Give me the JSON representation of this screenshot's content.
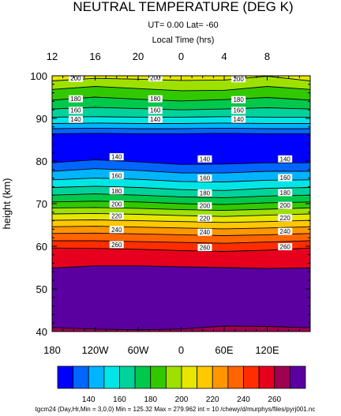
{
  "chart_data": {
    "type": "contour",
    "title": "NEUTRAL TEMPERATURE (DEG K)",
    "subtitle": "UT=  0.00 Lat= -60",
    "top_axis_label": "Local Time (hrs)",
    "ylabel": "height (km)",
    "xlim": [
      -180,
      180
    ],
    "ylim": [
      40,
      100
    ],
    "x_ticks": [
      "180",
      "120W",
      "60W",
      "0",
      "60E",
      "120E"
    ],
    "x_tick_values": [
      -180,
      -120,
      -60,
      0,
      60,
      120
    ],
    "top_ticks": [
      "12",
      "16",
      "20",
      "0",
      "4",
      "8"
    ],
    "top_tick_values": [
      -180,
      -120,
      -60,
      0,
      60,
      120
    ],
    "y_ticks": [
      "40",
      "50",
      "60",
      "70",
      "80",
      "90",
      "100"
    ],
    "y_tick_values": [
      40,
      50,
      60,
      70,
      80,
      90,
      100
    ],
    "levels": [
      130,
      140,
      150,
      160,
      170,
      180,
      190,
      200,
      210,
      220,
      230,
      240,
      250,
      260,
      270
    ],
    "fill_colors": [
      "#0000ff",
      "#0066ff",
      "#00b4ff",
      "#00e6e6",
      "#00d29b",
      "#00c84b",
      "#32c800",
      "#9ee100",
      "#e6e600",
      "#ffc800",
      "#ff9600",
      "#ff6400",
      "#ff2d00",
      "#e6001e",
      "#a00050",
      "#5a00a0"
    ],
    "contours": [
      {
        "level": 130,
        "x": [
          -180,
          -120,
          -60,
          0,
          60,
          120,
          180
        ],
        "y": [
          86.4,
          86.5,
          86.4,
          86.4,
          86.5,
          86.4,
          86.4
        ]
      },
      {
        "level": 140,
        "x": [
          -180,
          -120,
          -60,
          0,
          60,
          120,
          180
        ],
        "y": [
          87.6,
          87.7,
          87.6,
          87.6,
          87.7,
          87.6,
          87.6
        ]
      },
      {
        "level": 150,
        "x": [
          -180,
          -120,
          -60,
          0,
          60,
          120,
          180
        ],
        "y": [
          88.8,
          88.9,
          88.8,
          88.8,
          88.9,
          88.8,
          88.8
        ]
      },
      {
        "level": 160,
        "x": [
          -180,
          -120,
          -60,
          0,
          60,
          120,
          180
        ],
        "y": [
          90.3,
          90.4,
          90.3,
          90.3,
          90.4,
          90.3,
          90.3
        ]
      },
      {
        "level": 170,
        "x": [
          -180,
          -120,
          -60,
          0,
          60,
          120,
          180
        ],
        "y": [
          92.2,
          92.6,
          92.3,
          92.0,
          92.2,
          92.5,
          92.2
        ]
      },
      {
        "level": 180,
        "x": [
          -180,
          -120,
          -60,
          0,
          60,
          120,
          180
        ],
        "y": [
          94.3,
          95.0,
          94.5,
          94.1,
          94.4,
          94.9,
          94.3
        ]
      },
      {
        "level": 190,
        "x": [
          -180,
          -120,
          -60,
          0,
          60,
          120,
          180
        ],
        "y": [
          96.8,
          97.5,
          97.0,
          96.5,
          96.6,
          97.5,
          96.8
        ]
      },
      {
        "level": 200,
        "x": [
          -180,
          -120,
          -60,
          0,
          60,
          120,
          180
        ],
        "y": [
          98.8,
          99.4,
          99.2,
          98.9,
          99.0,
          99.9,
          98.8
        ]
      },
      {
        "level": 140,
        "x": [
          -180,
          -120,
          -60,
          0,
          60,
          120,
          180
        ],
        "y": [
          79.6,
          80.3,
          79.8,
          79.2,
          79.3,
          79.6,
          79.6
        ]
      },
      {
        "level": 150,
        "x": [
          -180,
          -120,
          -60,
          0,
          60,
          120,
          180
        ],
        "y": [
          77.6,
          78.2,
          77.8,
          77.2,
          77.2,
          77.6,
          77.6
        ]
      },
      {
        "level": 160,
        "x": [
          -180,
          -120,
          -60,
          0,
          60,
          120,
          180
        ],
        "y": [
          75.6,
          76.0,
          75.7,
          75.2,
          75.1,
          75.5,
          75.6
        ]
      },
      {
        "level": 170,
        "x": [
          -180,
          -120,
          -60,
          0,
          60,
          120,
          180
        ],
        "y": [
          73.8,
          74.1,
          73.8,
          73.3,
          73.1,
          73.6,
          73.8
        ]
      },
      {
        "level": 180,
        "x": [
          -180,
          -120,
          -60,
          0,
          60,
          120,
          180
        ],
        "y": [
          72.0,
          72.3,
          72.0,
          71.6,
          71.4,
          71.8,
          72.0
        ]
      },
      {
        "level": 190,
        "x": [
          -180,
          -120,
          -60,
          0,
          60,
          120,
          180
        ],
        "y": [
          70.4,
          70.6,
          70.4,
          70.0,
          69.8,
          70.2,
          70.4
        ]
      },
      {
        "level": 200,
        "x": [
          -180,
          -120,
          -60,
          0,
          60,
          120,
          180
        ],
        "y": [
          69.0,
          69.1,
          68.9,
          68.6,
          68.4,
          68.7,
          69.0
        ]
      },
      {
        "level": 210,
        "x": [
          -180,
          -120,
          -60,
          0,
          60,
          120,
          180
        ],
        "y": [
          67.6,
          67.7,
          67.5,
          67.2,
          67.0,
          67.3,
          67.6
        ]
      },
      {
        "level": 220,
        "x": [
          -180,
          -120,
          -60,
          0,
          60,
          120,
          180
        ],
        "y": [
          66.1,
          66.2,
          66.0,
          65.8,
          65.6,
          65.8,
          66.1
        ]
      },
      {
        "level": 230,
        "x": [
          -180,
          -120,
          -60,
          0,
          60,
          120,
          180
        ],
        "y": [
          64.6,
          64.7,
          64.5,
          64.3,
          64.1,
          64.3,
          64.6
        ]
      },
      {
        "level": 240,
        "x": [
          -180,
          -120,
          -60,
          0,
          60,
          120,
          180
        ],
        "y": [
          63.0,
          63.1,
          62.9,
          62.7,
          62.5,
          62.7,
          63.0
        ]
      },
      {
        "level": 250,
        "x": [
          -180,
          -120,
          -60,
          0,
          60,
          120,
          180
        ],
        "y": [
          61.3,
          61.3,
          61.1,
          60.9,
          60.7,
          61.0,
          61.3
        ]
      },
      {
        "level": 260,
        "x": [
          -180,
          -120,
          -60,
          0,
          60,
          120,
          180
        ],
        "y": [
          59.6,
          59.5,
          59.3,
          59.0,
          58.8,
          59.1,
          59.6
        ]
      },
      {
        "level": 270,
        "x": [
          -180,
          -120,
          -60,
          0,
          60,
          120,
          180
        ],
        "y": [
          54.9,
          55.4,
          55.4,
          55.2,
          55.0,
          54.8,
          54.9
        ]
      },
      {
        "level": 270,
        "x": [
          -180,
          -120,
          -60,
          0,
          60,
          120,
          180
        ],
        "y": [
          40.9,
          40.6,
          40.4,
          40.6,
          41.3,
          41.2,
          40.9
        ]
      }
    ],
    "contour_labels": [
      {
        "text": "200",
        "x": -147,
        "y": 99.4
      },
      {
        "text": "200",
        "x": -36,
        "y": 99.5
      },
      {
        "text": "200",
        "x": 80,
        "y": 99.3
      },
      {
        "text": "180",
        "x": -147,
        "y": 94.6
      },
      {
        "text": "180",
        "x": -36,
        "y": 94.6
      },
      {
        "text": "180",
        "x": 80,
        "y": 94.4
      },
      {
        "text": "160",
        "x": -147,
        "y": 91.9
      },
      {
        "text": "160",
        "x": -36,
        "y": 91.9
      },
      {
        "text": "160",
        "x": 80,
        "y": 91.9
      },
      {
        "text": "140",
        "x": -147,
        "y": 89.8
      },
      {
        "text": "140",
        "x": -36,
        "y": 89.8
      },
      {
        "text": "140",
        "x": 80,
        "y": 89.8
      },
      {
        "text": "140",
        "x": -90,
        "y": 81.0
      },
      {
        "text": "140",
        "x": 33,
        "y": 80.5
      },
      {
        "text": "140",
        "x": 145,
        "y": 80.5
      },
      {
        "text": "160",
        "x": -90,
        "y": 76.6
      },
      {
        "text": "160",
        "x": 33,
        "y": 76.0
      },
      {
        "text": "160",
        "x": 145,
        "y": 76.1
      },
      {
        "text": "180",
        "x": -90,
        "y": 73.0
      },
      {
        "text": "180",
        "x": 33,
        "y": 72.5
      },
      {
        "text": "180",
        "x": 145,
        "y": 72.6
      },
      {
        "text": "200",
        "x": -90,
        "y": 69.9
      },
      {
        "text": "200",
        "x": 33,
        "y": 69.5
      },
      {
        "text": "200",
        "x": 145,
        "y": 69.6
      },
      {
        "text": "220",
        "x": -90,
        "y": 67.1
      },
      {
        "text": "220",
        "x": 33,
        "y": 66.6
      },
      {
        "text": "220",
        "x": 145,
        "y": 66.7
      },
      {
        "text": "240",
        "x": -90,
        "y": 63.9
      },
      {
        "text": "240",
        "x": 33,
        "y": 63.3
      },
      {
        "text": "240",
        "x": 145,
        "y": 63.5
      },
      {
        "text": "260",
        "x": -90,
        "y": 60.4
      },
      {
        "text": "260",
        "x": 33,
        "y": 59.7
      },
      {
        "text": "260",
        "x": 145,
        "y": 59.9
      }
    ],
    "colorbar": {
      "labels": [
        "140",
        "160",
        "180",
        "200",
        "220",
        "240",
        "260"
      ],
      "label_after_box": [
        1,
        3,
        5,
        7,
        9,
        11,
        13
      ]
    },
    "footer": "tgcm24  (Day,Hr,Min = 3,0,0) Min = 125.32  Max  = 279.962  int = 10 /chewy/d/murphys/files/pyrj001.nc"
  }
}
